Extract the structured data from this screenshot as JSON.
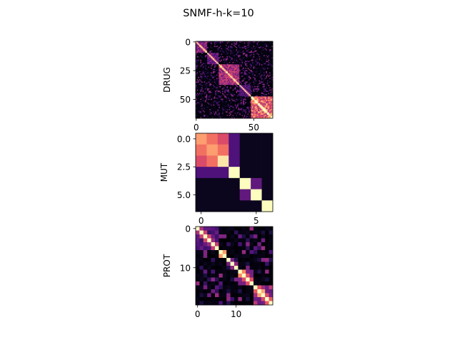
{
  "chart_data": {
    "type": "heatmap",
    "title": "SNMF-h-k=10",
    "colormap": "magma",
    "value_range": [
      0,
      1
    ],
    "panels": [
      {
        "ylabel": "DRUG",
        "size": 67,
        "xticks": [
          0,
          50
        ],
        "yticks": [
          0,
          25,
          50
        ],
        "blocks": [
          {
            "start": 0,
            "end": 10,
            "within": 0.45
          },
          {
            "start": 10,
            "end": 20,
            "within": 0.35
          },
          {
            "start": 20,
            "end": 38,
            "within": 0.55
          },
          {
            "start": 38,
            "end": 48,
            "within": 0.3
          },
          {
            "start": 48,
            "end": 67,
            "within": 0.78
          }
        ],
        "background": 0.05,
        "diagonal": 1.0
      },
      {
        "ylabel": "MUT",
        "size": 7,
        "xticks": [
          0,
          5
        ],
        "yticks": [
          "0.0",
          "2.5",
          "5.0"
        ],
        "matrix": [
          [
            0.8,
            0.7,
            0.6,
            0.25,
            0.05,
            0.05,
            0.05
          ],
          [
            0.7,
            0.8,
            0.7,
            0.25,
            0.05,
            0.05,
            0.05
          ],
          [
            0.6,
            0.7,
            0.95,
            0.25,
            0.05,
            0.05,
            0.05
          ],
          [
            0.25,
            0.25,
            0.25,
            1.0,
            0.05,
            0.05,
            0.05
          ],
          [
            0.05,
            0.05,
            0.05,
            0.05,
            1.0,
            0.3,
            0.05
          ],
          [
            0.05,
            0.05,
            0.05,
            0.05,
            0.3,
            1.0,
            0.05
          ],
          [
            0.05,
            0.05,
            0.05,
            0.05,
            0.05,
            0.05,
            1.0
          ]
        ]
      },
      {
        "ylabel": "PROT",
        "size": 20,
        "xticks": [
          0,
          10
        ],
        "yticks": [
          0,
          10
        ],
        "blocks": [
          {
            "start": 0,
            "end": 6,
            "within": 0.3
          },
          {
            "start": 6,
            "end": 8,
            "within": 0.85
          },
          {
            "start": 8,
            "end": 11,
            "within": 0.15
          },
          {
            "start": 11,
            "end": 15,
            "within": 0.45
          },
          {
            "start": 15,
            "end": 20,
            "within": 0.5
          }
        ],
        "background": 0.05,
        "diagonal": 1.0
      }
    ]
  }
}
